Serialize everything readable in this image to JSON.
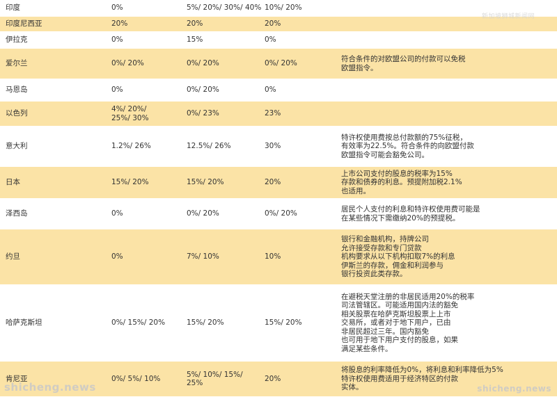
{
  "watermarks": {
    "top": "新加坡狮城新闻网",
    "bottom_left": "shicheng.news",
    "bottom_right": "shicheng.news"
  },
  "rows": [
    {
      "country": "印度",
      "dividend": "0%",
      "interest": "5%/ 20%/ 30%/ 40%",
      "royalty": "10%/ 20%",
      "note": ""
    },
    {
      "country": "印度尼西亚",
      "dividend": "20%",
      "interest": "20%",
      "royalty": "20%",
      "note": ""
    },
    {
      "country": "伊拉克",
      "dividend": "0%",
      "interest": "15%",
      "royalty": "0%",
      "note": ""
    },
    {
      "country": "爱尔兰",
      "dividend": "0%/ 20%",
      "interest": "0%/ 20%",
      "royalty": "0%/ 20%",
      "note": "符合条件的对欧盟公司的付款可以免税\n欧盟指令。"
    },
    {
      "country": "马恩岛",
      "dividend": "0%",
      "interest": "0%/ 20%",
      "royalty": "0%",
      "note": ""
    },
    {
      "country": "以色列",
      "dividend": "4%/ 20%/\n25%/ 30%",
      "interest": "0%/ 23%",
      "royalty": "23%",
      "note": ""
    },
    {
      "country": "意大利",
      "dividend": "1.2%/ 26%",
      "interest": "12.5%/ 26%",
      "royalty": "30%",
      "note": "特许权使用费按总付款额的75%征税，\n有效率为22.5%。符合条件的向欧盟付款\n欧盟指令可能会豁免公司。"
    },
    {
      "country": "日本",
      "dividend": "15%/ 20%",
      "interest": "15%/ 20%",
      "royalty": "20%",
      "note": "上市公司支付的股息的税率为15%\n存款和债券的利息。预提附加税2.1%\n也适用。"
    },
    {
      "country": "泽西岛",
      "dividend": "0%",
      "interest": "0%/ 20%",
      "royalty": "0%/ 20%",
      "note": "居民个人支付的利息和特许权使用费可能是\n在某些情况下需缴纳20%的预提税。"
    },
    {
      "country": "约旦",
      "dividend": "0%",
      "interest": "7%/ 10%",
      "royalty": "10%",
      "note": "银行和金融机构，持牌公司\n允许接受存款和专门贷款\n机构要求从以下机构扣取7%的利息\n伊斯兰的存款，佣金和利润参与\n银行投资此类存款。"
    },
    {
      "country": "哈萨克斯坦",
      "dividend": "0%/ 15%/ 20%",
      "interest": "15%/ 20%",
      "royalty": "15%/ 20%",
      "note": "在避税天堂注册的非居民适用20%的税率\n司法管辖区。可能适用国内法的豁免\n相关股票在哈萨克斯坦股票上上市\n交易所，或者对于地下用户，已由\n非居民超过三年。国内豁免\n也可用于地下用户支付的股息，如果\n满足某些条件。"
    },
    {
      "country": "肯尼亚",
      "dividend": "0%/ 5%/ 10%",
      "interest": "5%/ 10%/ 15%/\n25%",
      "royalty": "20%",
      "note": "将股息的利率降低为0%，将利息和利率降低为5%\n特许权使用费适用于经济特区的付款\n实体。"
    }
  ]
}
